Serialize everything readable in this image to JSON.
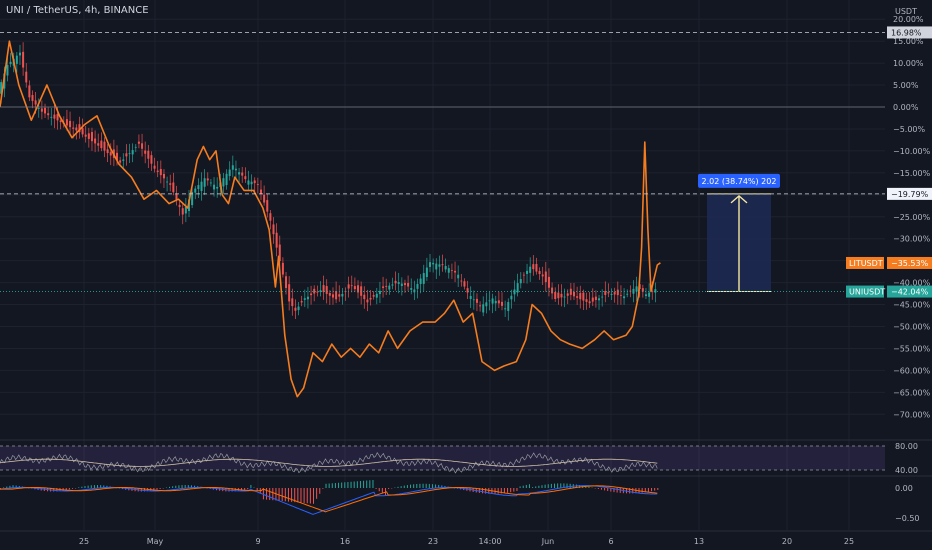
{
  "header": {
    "symbol": "UNI / TetherUS, 4h, BINANCE"
  },
  "price_axis": {
    "currency": "USDT",
    "ticks": [
      "20.00%",
      "15.00%",
      "10.00%",
      "5.00%",
      "0.00%",
      "−5.00%",
      "−10.00%",
      "−15.00%",
      "−20.00%",
      "−25.00%",
      "−30.00%",
      "−35.00%",
      "−40.00%",
      "−45.00%",
      "−50.00%",
      "−55.00%",
      "−60.00%",
      "−65.00%",
      "−70.00%"
    ],
    "tags": {
      "high": "16.98%",
      "level": "−19.79%",
      "lit": "LITUSDT",
      "lit_value": "−35.53%",
      "uni": "UNIUSDT",
      "uni_value": "−42.04%"
    }
  },
  "rsi_axis": [
    "80.00",
    "40.00"
  ],
  "macd_axis": [
    "0.00",
    "−0.50"
  ],
  "time_axis": [
    "25",
    "May",
    "9",
    "16",
    "23",
    "14:00",
    "Jun",
    "6",
    "13",
    "20",
    "25"
  ],
  "measure": {
    "label": "2.02 (38.74%) 202"
  },
  "colors": {
    "background": "#131722",
    "up": "#26a69a",
    "down": "#ef5350",
    "lit": "#f57c1f",
    "uni_tag": "#26a69a",
    "measure_fill": "#1e2a55",
    "measure_label": "#2962ff",
    "rsi_band": "#7e57c2",
    "macd_line": "#2962ff",
    "signal_line": "#ff6d00"
  },
  "chart_data": {
    "type": "line",
    "title": "UNI / TetherUS, 4h, BINANCE",
    "y_unit": "%",
    "ylim": [
      -74,
      22
    ],
    "x_labels": [
      "25",
      "May",
      "9",
      "16",
      "23",
      "14:00",
      "Jun",
      "6",
      "13",
      "20",
      "25"
    ],
    "series": [
      {
        "name": "UNIUSDT",
        "style": "candles",
        "anchors": [
          [
            0,
            3
          ],
          [
            6,
            9
          ],
          [
            14,
            12
          ],
          [
            20,
            2
          ],
          [
            28,
            -1
          ],
          [
            40,
            -3
          ],
          [
            52,
            -5
          ],
          [
            64,
            -8
          ],
          [
            78,
            -12
          ],
          [
            90,
            -8
          ],
          [
            100,
            -14
          ],
          [
            110,
            -18
          ],
          [
            118,
            -25
          ],
          [
            124,
            -20
          ],
          [
            132,
            -17
          ],
          [
            140,
            -19
          ],
          [
            150,
            -14
          ],
          [
            158,
            -17
          ],
          [
            166,
            -18
          ],
          [
            174,
            -26
          ],
          [
            180,
            -35
          ],
          [
            186,
            -44
          ],
          [
            190,
            -46
          ],
          [
            196,
            -43
          ],
          [
            206,
            -41
          ],
          [
            216,
            -43
          ],
          [
            226,
            -40
          ],
          [
            236,
            -44
          ],
          [
            246,
            -41
          ],
          [
            256,
            -40
          ],
          [
            266,
            -42
          ],
          [
            276,
            -36
          ],
          [
            286,
            -37
          ],
          [
            294,
            -39
          ],
          [
            300,
            -43
          ],
          [
            308,
            -46
          ],
          [
            316,
            -44
          ],
          [
            324,
            -46
          ],
          [
            332,
            -40
          ],
          [
            340,
            -36
          ],
          [
            348,
            -38
          ],
          [
            356,
            -43
          ],
          [
            366,
            -42
          ],
          [
            378,
            -44
          ],
          [
            390,
            -42
          ],
          [
            400,
            -43
          ],
          [
            408,
            -41
          ],
          [
            414,
            -43
          ],
          [
            420,
            -42
          ]
        ],
        "last": -42.04
      },
      {
        "name": "LITUSDT",
        "style": "line",
        "anchors": [
          [
            0,
            0
          ],
          [
            6,
            15
          ],
          [
            12,
            5
          ],
          [
            20,
            -3
          ],
          [
            30,
            5
          ],
          [
            38,
            -2
          ],
          [
            46,
            -7
          ],
          [
            54,
            -4
          ],
          [
            62,
            -2
          ],
          [
            70,
            -9
          ],
          [
            76,
            -13
          ],
          [
            84,
            -16
          ],
          [
            92,
            -21
          ],
          [
            100,
            -19
          ],
          [
            108,
            -22
          ],
          [
            114,
            -21
          ],
          [
            120,
            -23
          ],
          [
            126,
            -12
          ],
          [
            130,
            -9
          ],
          [
            134,
            -12
          ],
          [
            138,
            -10
          ],
          [
            142,
            -20
          ],
          [
            146,
            -22
          ],
          [
            150,
            -16
          ],
          [
            156,
            -19
          ],
          [
            162,
            -19
          ],
          [
            168,
            -23
          ],
          [
            172,
            -28
          ],
          [
            176,
            -41
          ],
          [
            178,
            -34
          ],
          [
            182,
            -52
          ],
          [
            186,
            -62
          ],
          [
            190,
            -66
          ],
          [
            194,
            -64
          ],
          [
            200,
            -56
          ],
          [
            206,
            -58
          ],
          [
            212,
            -54
          ],
          [
            218,
            -57
          ],
          [
            224,
            -55
          ],
          [
            230,
            -57
          ],
          [
            236,
            -54
          ],
          [
            242,
            -56
          ],
          [
            248,
            -51
          ],
          [
            254,
            -55
          ],
          [
            262,
            -51
          ],
          [
            270,
            -49
          ],
          [
            278,
            -49
          ],
          [
            284,
            -47
          ],
          [
            290,
            -44
          ],
          [
            296,
            -49
          ],
          [
            302,
            -47
          ],
          [
            308,
            -58
          ],
          [
            316,
            -60
          ],
          [
            322,
            -59
          ],
          [
            330,
            -58
          ],
          [
            336,
            -53
          ],
          [
            340,
            -45
          ],
          [
            346,
            -47
          ],
          [
            352,
            -51
          ],
          [
            358,
            -53
          ],
          [
            364,
            -54
          ],
          [
            372,
            -55
          ],
          [
            380,
            -53
          ],
          [
            386,
            -51
          ],
          [
            392,
            -53
          ],
          [
            400,
            -52
          ],
          [
            404,
            -50
          ],
          [
            408,
            -43
          ],
          [
            410,
            -32
          ],
          [
            412,
            -8
          ],
          [
            414,
            -28
          ],
          [
            416,
            -42
          ],
          [
            420,
            -36
          ],
          [
            422,
            -35.5
          ]
        ],
        "last": -35.53
      }
    ],
    "levels": [
      {
        "label": "16.98%",
        "value": 16.98
      },
      {
        "label": "0.00%",
        "value": 0
      },
      {
        "label": "−19.79%",
        "value": -19.79
      },
      {
        "label": "−42.04%",
        "value": -42.04
      }
    ],
    "measure": {
      "label": "2.02 (38.74%) 202",
      "from": -42.04,
      "to": -19.79
    },
    "rsi": {
      "ylim": [
        30,
        90
      ],
      "band": [
        40,
        80
      ]
    },
    "macd": {
      "ylim": [
        -0.7,
        0.2
      ]
    }
  }
}
